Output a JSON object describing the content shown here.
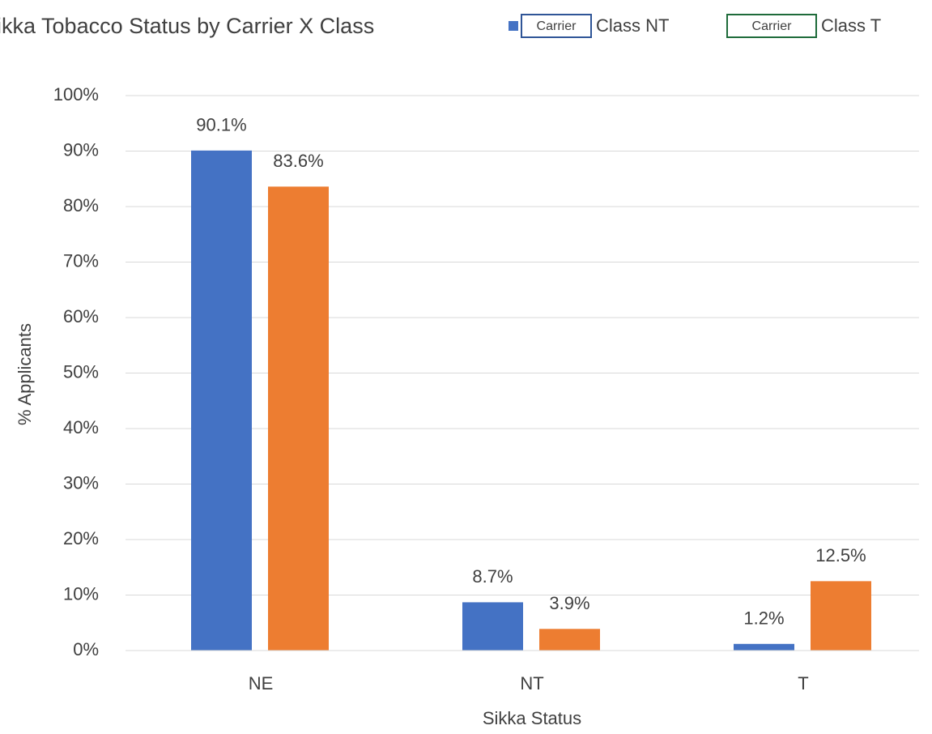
{
  "chart_data": {
    "type": "bar",
    "title": "Sikka Tobacco Status by Carrier X Class",
    "x_label": "Sikka Status",
    "y_label": "% Applicants",
    "categories": [
      "NE",
      "NT",
      "T"
    ],
    "series": [
      {
        "name": "Class NT",
        "legend_tag": "Carrier",
        "color": "#4472c4",
        "tag_border": "#2f5597",
        "values": [
          90.1,
          8.7,
          1.2
        ],
        "value_labels": [
          "90.1%",
          "8.7%",
          "1.2%"
        ]
      },
      {
        "name": "Class T",
        "legend_tag": "Carrier",
        "color": "#ed7d31",
        "tag_border": "#1e6b3a",
        "values": [
          83.6,
          3.9,
          12.5
        ],
        "value_labels": [
          "83.6%",
          "3.9%",
          "12.5%"
        ]
      }
    ],
    "ylim": [
      0,
      100
    ],
    "yticks": [
      {
        "value": 0,
        "label": "0%"
      },
      {
        "value": 10,
        "label": "10%"
      },
      {
        "value": 20,
        "label": "20%"
      },
      {
        "value": 30,
        "label": "30%"
      },
      {
        "value": 40,
        "label": "40%"
      },
      {
        "value": 50,
        "label": "50%"
      },
      {
        "value": 60,
        "label": "60%"
      },
      {
        "value": 70,
        "label": "70%"
      },
      {
        "value": 80,
        "label": "80%"
      },
      {
        "value": 90,
        "label": "90%"
      },
      {
        "value": 100,
        "label": "100%"
      }
    ],
    "grid": true
  }
}
